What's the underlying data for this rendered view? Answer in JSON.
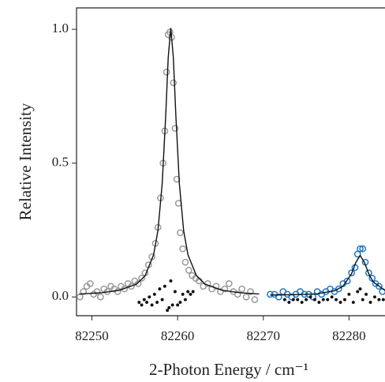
{
  "chart_data": {
    "type": "scatter",
    "x_label": "2-Photon Energy / cm⁻¹",
    "y_label": "Relative Intensity",
    "xlim": [
      82248.2,
      82284.2
    ],
    "ylim": [
      -0.07,
      1.08
    ],
    "xticks": [
      82250,
      82260,
      82270,
      82280
    ],
    "yticks": [
      {
        "value": 0,
        "label": "0.0"
      },
      0.5,
      {
        "value": 1,
        "label": "1.0"
      }
    ],
    "series": [
      {
        "style": "open-circle",
        "color": "#9a9a9a",
        "x": [
          82248.6,
          82249.0,
          82249.4,
          82249.8,
          82250.2,
          82250.6,
          82251.0,
          82251.4,
          82251.8,
          82252.2,
          82252.6,
          82253.0,
          82253.4,
          82253.8,
          82254.2,
          82254.6,
          82255.0,
          82255.4,
          82255.8,
          82256.2,
          82256.6,
          82257.0,
          82257.4,
          82257.7,
          82258.0,
          82258.3,
          82258.5,
          82258.7,
          82258.9,
          82259.1,
          82259.3,
          82259.5,
          82259.7,
          82259.9,
          82260.1,
          82260.3,
          82260.6,
          82260.9,
          82261.3,
          82261.7,
          82262.1,
          82262.5,
          82263.0,
          82263.5,
          82264.0,
          82264.5,
          82265.0,
          82265.5,
          82266.0,
          82266.5,
          82267.0,
          82267.5,
          82268.0,
          82268.5,
          82269.0
        ],
        "values": [
          0.0,
          0.02,
          0.04,
          0.05,
          0.01,
          0.02,
          0.0,
          0.03,
          0.02,
          0.04,
          0.03,
          0.02,
          0.04,
          0.03,
          0.05,
          0.04,
          0.06,
          0.05,
          0.07,
          0.09,
          0.12,
          0.15,
          0.2,
          0.26,
          0.37,
          0.5,
          0.62,
          0.84,
          0.98,
          0.99,
          0.97,
          0.8,
          0.63,
          0.44,
          0.35,
          0.24,
          0.18,
          0.13,
          0.1,
          0.08,
          0.07,
          0.06,
          0.04,
          0.05,
          0.03,
          0.04,
          0.02,
          0.03,
          0.05,
          0.02,
          0.01,
          0.03,
          0.0,
          0.02,
          -0.01
        ]
      },
      {
        "style": "open-circle",
        "color": "#1f78c8",
        "x": [
          82270.8,
          82271.3,
          82271.8,
          82272.3,
          82272.8,
          82273.3,
          82273.8,
          82274.3,
          82274.8,
          82275.3,
          82275.8,
          82276.3,
          82276.8,
          82277.3,
          82277.8,
          82278.3,
          82278.8,
          82279.3,
          82279.8,
          82280.3,
          82280.7,
          82281.0,
          82281.3,
          82281.6,
          82281.9,
          82282.3,
          82282.7,
          82283.1,
          82283.5,
          82283.9
        ],
        "values": [
          0.01,
          0.01,
          0.0,
          0.02,
          0.01,
          0.0,
          0.01,
          0.02,
          0.01,
          0.01,
          0.0,
          0.02,
          0.01,
          0.02,
          0.03,
          0.02,
          0.03,
          0.05,
          0.06,
          0.09,
          0.11,
          0.16,
          0.18,
          0.18,
          0.13,
          0.09,
          0.07,
          0.05,
          0.04,
          0.02
        ]
      },
      {
        "style": "line",
        "color": "#111111",
        "x": [
          82248.5,
          82251.2,
          82253.2,
          82255.2,
          82256.2,
          82257.2,
          82257.7,
          82258.2,
          82258.6,
          82258.9,
          82259.2,
          82259.5,
          82259.8,
          82260.2,
          82260.7,
          82261.2,
          82262.2,
          82263.2,
          82265.2,
          82267.2,
          82269.5
        ],
        "values": [
          0.011,
          0.016,
          0.025,
          0.048,
          0.079,
          0.158,
          0.248,
          0.424,
          0.672,
          0.894,
          1.005,
          0.894,
          0.672,
          0.424,
          0.248,
          0.158,
          0.079,
          0.048,
          0.025,
          0.016,
          0.011
        ]
      },
      {
        "style": "line",
        "color": "#111111",
        "x": [
          82270.8,
          82274.3,
          82276.3,
          82278.3,
          82279.3,
          82280.3,
          82280.8,
          82281.3,
          82281.8,
          82282.3,
          82282.8,
          82284.2
        ],
        "values": [
          0.007,
          0.009,
          0.012,
          0.023,
          0.04,
          0.087,
          0.129,
          0.155,
          0.129,
          0.087,
          0.057,
          0.024
        ]
      },
      {
        "style": "dot",
        "color": "#111111",
        "x": [
          82255.5,
          82255.8,
          82256.1,
          82256.4,
          82256.7,
          82257.0,
          82257.3,
          82257.6,
          82257.9,
          82258.2,
          82258.5,
          82258.8,
          82259.0,
          82259.2,
          82259.4,
          82259.7,
          82260.0,
          82260.3,
          82260.6,
          82260.9,
          82261.2,
          82261.5,
          82261.8
        ],
        "values": [
          -0.02,
          -0.03,
          -0.01,
          -0.02,
          0.0,
          -0.03,
          0.01,
          -0.02,
          0.03,
          -0.01,
          0.04,
          -0.05,
          -0.04,
          0.06,
          -0.03,
          0.02,
          -0.03,
          -0.02,
          0.01,
          -0.01,
          0.02,
          0.01,
          0.02
        ]
      },
      {
        "style": "dot",
        "color": "#111111",
        "x": [
          82272.5,
          82273.0,
          82273.5,
          82274.0,
          82274.5,
          82275.0,
          82275.5,
          82276.0,
          82276.5,
          82277.0,
          82277.5,
          82278.0,
          82278.5,
          82279.0,
          82279.5,
          82280.0,
          82280.5,
          82281.0,
          82281.3,
          82281.6,
          82282.0,
          82282.5,
          82283.0,
          82283.5,
          82284.0
        ],
        "values": [
          -0.01,
          -0.02,
          -0.01,
          -0.01,
          -0.02,
          -0.01,
          0.0,
          -0.01,
          -0.02,
          -0.01,
          -0.01,
          0.0,
          -0.01,
          -0.02,
          -0.01,
          0.01,
          -0.02,
          0.02,
          0.03,
          -0.01,
          0.01,
          -0.02,
          0.0,
          -0.01,
          -0.01
        ]
      }
    ]
  }
}
